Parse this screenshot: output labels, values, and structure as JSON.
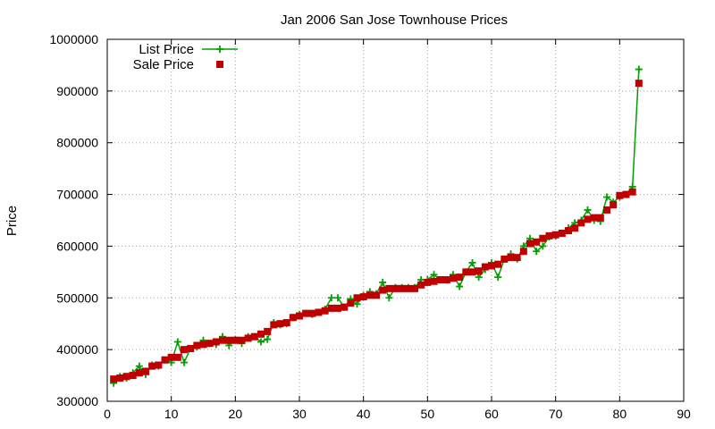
{
  "chart_data": {
    "type": "line",
    "title": "Jan 2006 San Jose Townhouse Prices",
    "xlabel": "",
    "ylabel": "Price",
    "xlim": [
      0,
      90
    ],
    "ylim": [
      300000,
      1000000
    ],
    "x_ticks": [
      0,
      10,
      20,
      30,
      40,
      50,
      60,
      70,
      80,
      90
    ],
    "y_ticks": [
      300000,
      400000,
      500000,
      600000,
      700000,
      800000,
      900000,
      1000000
    ],
    "x_tick_labels": [
      "0",
      "10",
      "20",
      "30",
      "40",
      "50",
      "60",
      "70",
      "80",
      "90"
    ],
    "y_tick_labels": [
      "300000",
      "400000",
      "500000",
      "600000",
      "700000",
      "800000",
      "900000",
      "1000000"
    ],
    "grid": true,
    "legend_position": "top-left",
    "x": [
      1,
      2,
      3,
      4,
      5,
      6,
      7,
      8,
      9,
      10,
      11,
      12,
      13,
      14,
      15,
      16,
      17,
      18,
      19,
      20,
      21,
      22,
      23,
      24,
      25,
      26,
      27,
      28,
      29,
      30,
      31,
      32,
      33,
      34,
      35,
      36,
      37,
      38,
      39,
      40,
      41,
      42,
      43,
      44,
      45,
      46,
      47,
      48,
      49,
      50,
      51,
      52,
      53,
      54,
      55,
      56,
      57,
      58,
      59,
      60,
      61,
      62,
      63,
      64,
      65,
      66,
      67,
      68,
      69,
      70,
      71,
      72,
      73,
      74,
      75,
      76,
      77,
      78,
      79,
      80,
      81,
      82,
      83
    ],
    "series": [
      {
        "name": "List Price",
        "style": "line-plus",
        "color": "#00a000",
        "values": [
          335000,
          348000,
          345000,
          355000,
          368000,
          352000,
          370000,
          368000,
          380000,
          375000,
          415000,
          375000,
          402000,
          405000,
          418000,
          412000,
          410000,
          425000,
          408000,
          420000,
          412000,
          425000,
          425000,
          415000,
          420000,
          452000,
          448000,
          450000,
          462000,
          468000,
          470000,
          468000,
          472000,
          478000,
          500000,
          500000,
          482000,
          498000,
          488000,
          505000,
          512000,
          508000,
          530000,
          500000,
          520000,
          520000,
          520000,
          520000,
          535000,
          535000,
          545000,
          535000,
          535000,
          545000,
          522000,
          550000,
          568000,
          540000,
          555000,
          568000,
          540000,
          575000,
          585000,
          575000,
          600000,
          615000,
          590000,
          600000,
          618000,
          620000,
          625000,
          635000,
          645000,
          650000,
          670000,
          650000,
          648000,
          695000,
          685000,
          695000,
          700000,
          715000,
          942000
        ]
      },
      {
        "name": "Sale Price",
        "style": "square-points",
        "color": "#c00000",
        "values": [
          343000,
          345000,
          348000,
          350000,
          355000,
          358000,
          368000,
          370000,
          380000,
          385000,
          385000,
          400000,
          402000,
          408000,
          410000,
          412000,
          415000,
          418000,
          418000,
          418000,
          418000,
          422000,
          425000,
          430000,
          435000,
          448000,
          450000,
          452000,
          462000,
          465000,
          470000,
          470000,
          472000,
          475000,
          480000,
          480000,
          482000,
          490000,
          500000,
          502000,
          505000,
          505000,
          515000,
          518000,
          518000,
          518000,
          518000,
          518000,
          525000,
          530000,
          532000,
          535000,
          535000,
          538000,
          540000,
          550000,
          550000,
          552000,
          560000,
          562000,
          565000,
          575000,
          578000,
          578000,
          590000,
          605000,
          608000,
          615000,
          620000,
          622000,
          625000,
          630000,
          635000,
          645000,
          652000,
          655000,
          655000,
          670000,
          680000,
          698000,
          700000,
          705000,
          915000
        ]
      }
    ]
  }
}
